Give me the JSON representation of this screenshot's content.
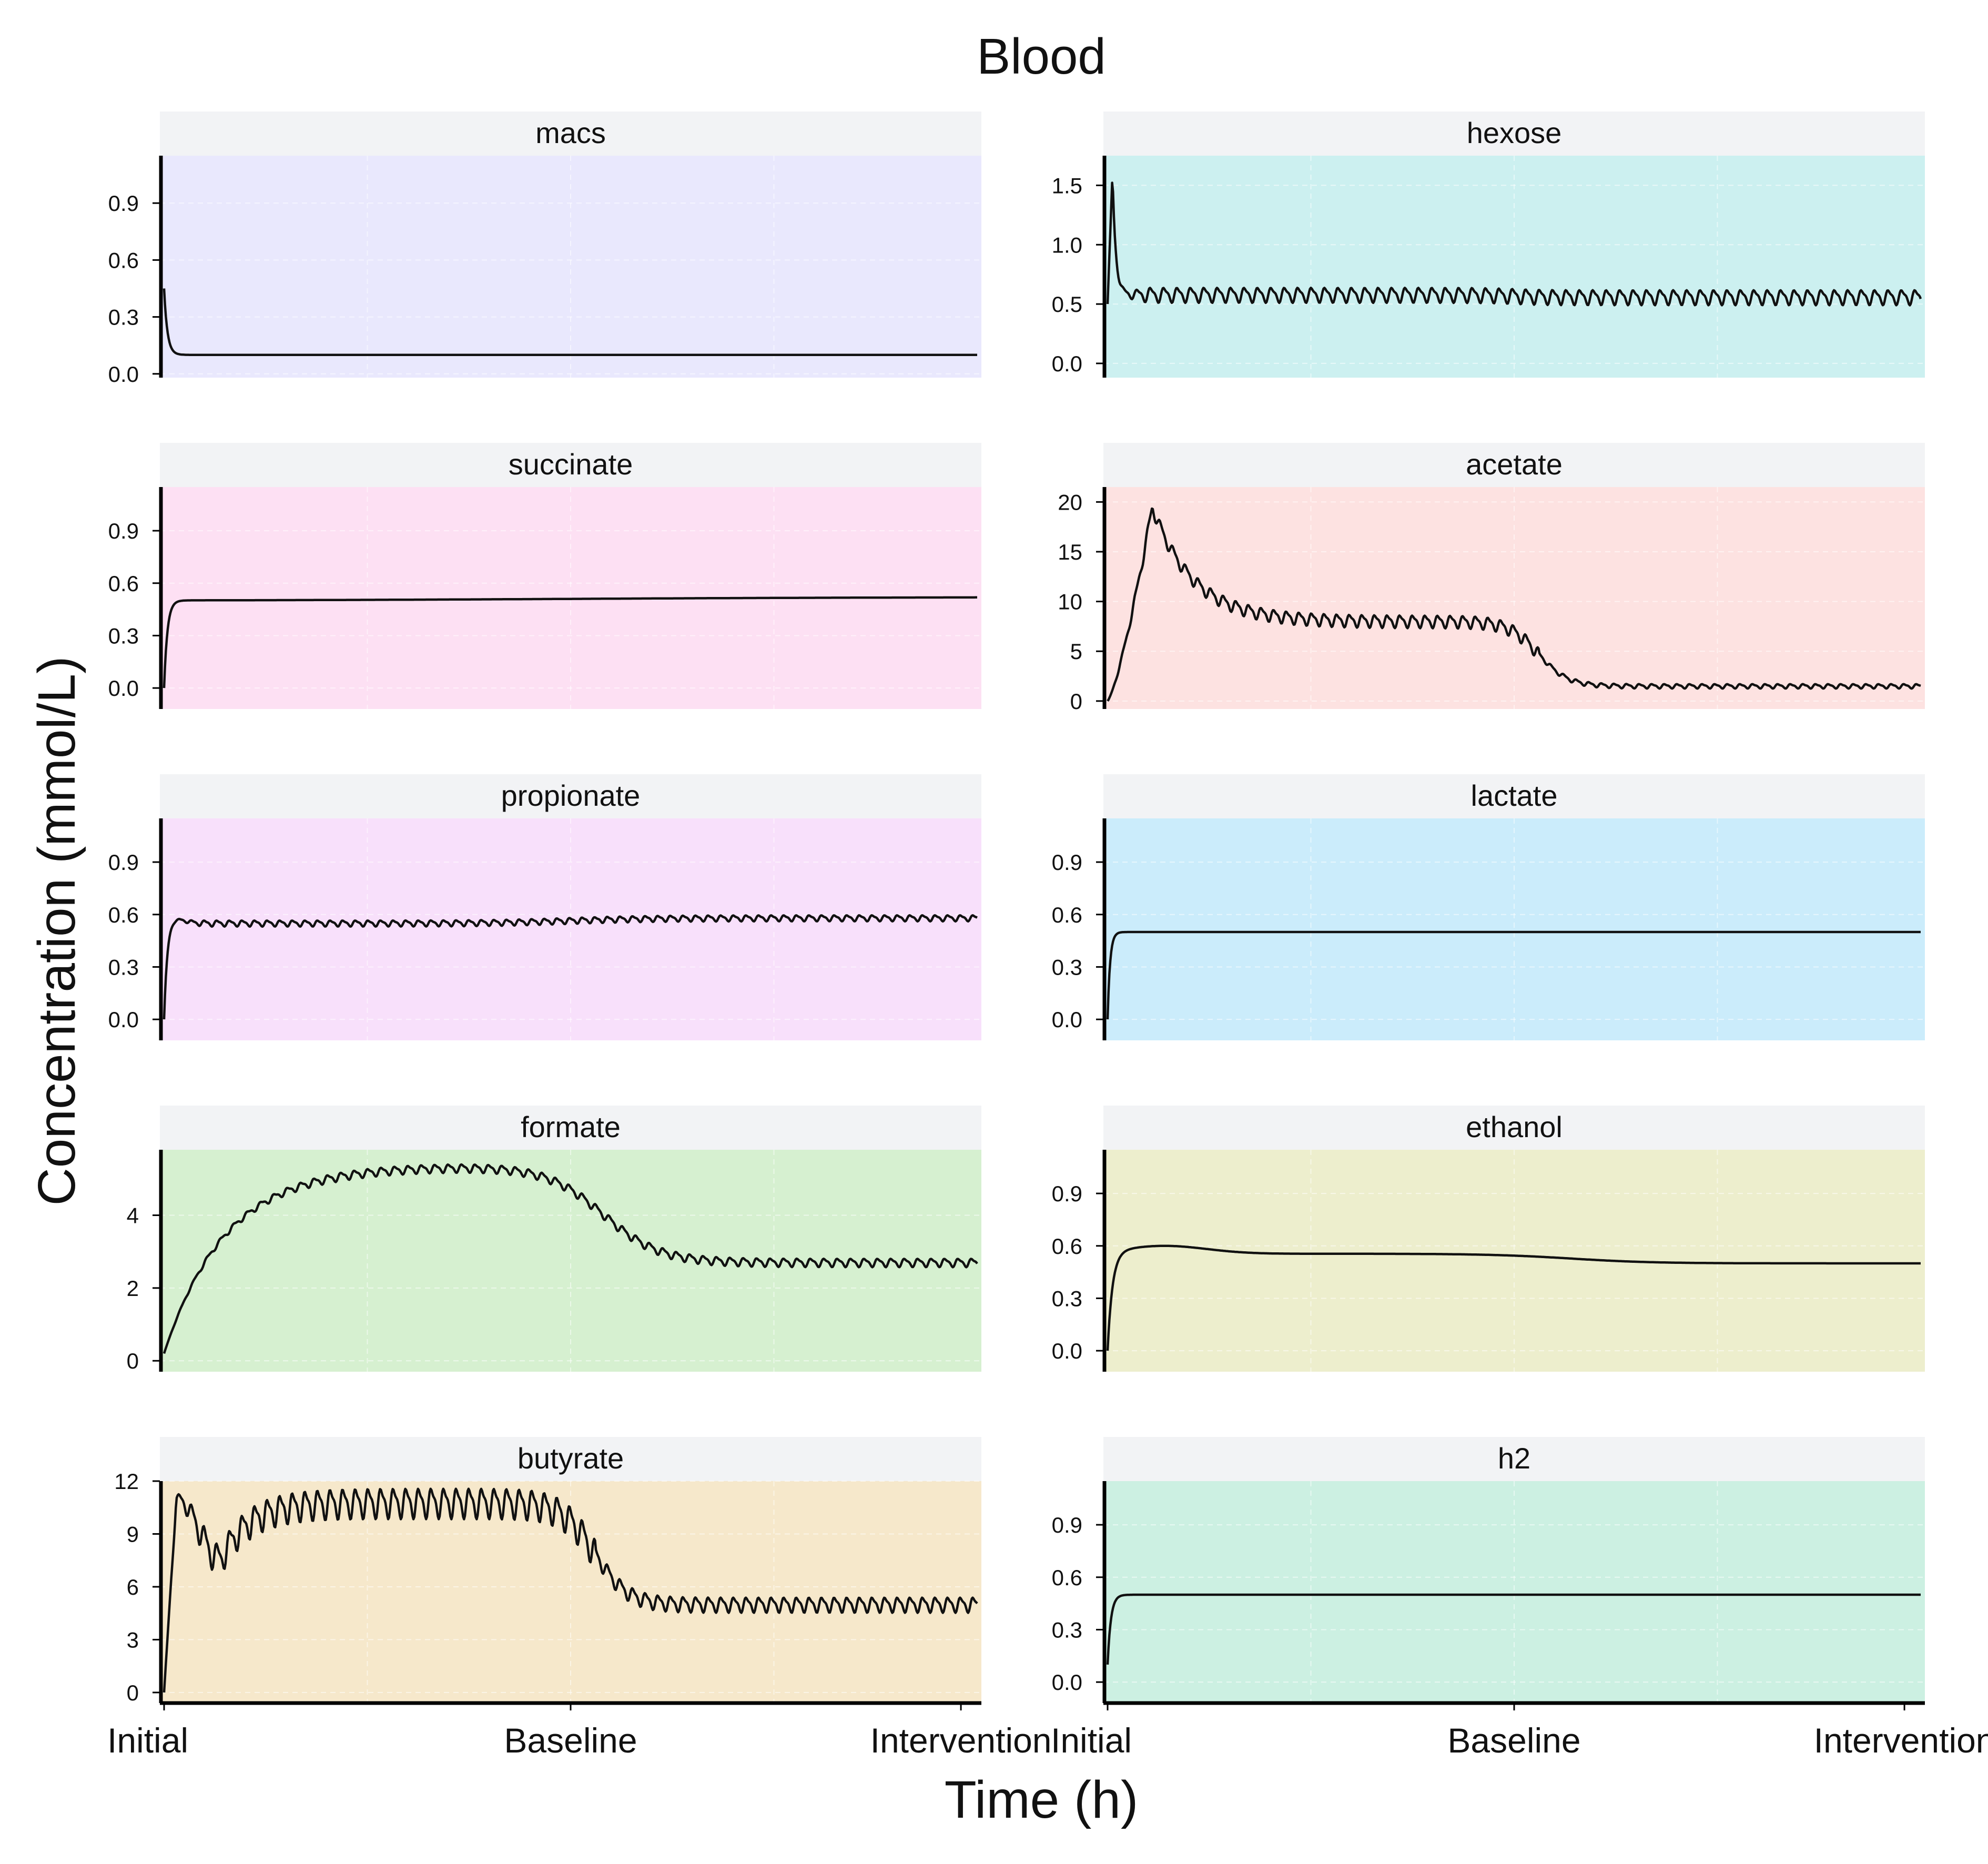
{
  "figure": {
    "title": "Blood",
    "xlabel": "Time (h)",
    "ylabel": "Concentration (mmol/L)",
    "x_tick_labels": [
      "Initial",
      "Baseline",
      "Intervention"
    ],
    "strip_color": "#f2f3f5",
    "line_color": "#111111"
  },
  "chart_data": [
    {
      "type": "line",
      "title": "macs",
      "bg": "#e9e8fd",
      "ylim": [
        -0.02,
        1.15
      ],
      "yticks": [
        0.0,
        0.3,
        0.6,
        0.9
      ],
      "tick_decimals": 1,
      "curve": {
        "kind": "decay",
        "start": 0.45,
        "end": 0.1,
        "tau": 0.004,
        "osc_amp": 0.0,
        "osc_period": 0.05
      }
    },
    {
      "type": "line",
      "title": "hexose",
      "bg": "#ccf0f0",
      "ylim": [
        -0.12,
        1.75
      ],
      "yticks": [
        0.0,
        0.5,
        1.0,
        1.5
      ],
      "tick_decimals": 1,
      "curve": {
        "kind": "peak",
        "start": 0.5,
        "peak": 1.6,
        "peak_at": 0.006,
        "tau": 0.004,
        "level1": 0.58,
        "level2": 0.56,
        "step_at": 0.5,
        "step_width": 0.02,
        "osc_amp": 0.055,
        "osc_period": 0.0165
      }
    },
    {
      "type": "line",
      "title": "succinate",
      "bg": "#fde0f3",
      "ylim": [
        -0.12,
        1.15
      ],
      "yticks": [
        0.0,
        0.3,
        0.6,
        0.9
      ],
      "tick_decimals": 1,
      "curve": {
        "kind": "rise",
        "start": 0.0,
        "tau": 0.004,
        "level1": 0.5,
        "level2": 0.52,
        "step_at": 0.5,
        "step_width": 0.2,
        "osc_amp": 0.0,
        "osc_period": 0.05
      }
    },
    {
      "type": "line",
      "title": "acetate",
      "bg": "#fde2e1",
      "ylim": [
        -0.8,
        21.5
      ],
      "yticks": [
        0,
        5,
        10,
        15,
        20
      ],
      "tick_decimals": 0,
      "curve": {
        "kind": "bigpeak",
        "start": 0.0,
        "peak": 19.5,
        "peak_at": 0.055,
        "rise_tau": 0.03,
        "decay_tau": 0.05,
        "level1": 8.0,
        "level2": 1.5,
        "step_at": 0.53,
        "step_width": 0.018,
        "osc_amp": 0.55,
        "osc_period": 0.0155
      }
    },
    {
      "type": "line",
      "title": "propionate",
      "bg": "#f8e0fb",
      "ylim": [
        -0.12,
        1.15
      ],
      "yticks": [
        0.0,
        0.3,
        0.6,
        0.9
      ],
      "tick_decimals": 1,
      "curve": {
        "kind": "overshoot",
        "start": 0.0,
        "peak": 0.58,
        "peak_at": 0.01,
        "tau": 0.004,
        "level1": 0.55,
        "level2": 0.58,
        "step_at": 0.5,
        "step_width": 0.05,
        "osc_amp": 0.015,
        "osc_period": 0.0155
      }
    },
    {
      "type": "line",
      "title": "lactate",
      "bg": "#cbecfb",
      "ylim": [
        -0.12,
        1.15
      ],
      "yticks": [
        0.0,
        0.3,
        0.6,
        0.9
      ],
      "tick_decimals": 1,
      "curve": {
        "kind": "rise",
        "start": 0.0,
        "tau": 0.003,
        "level1": 0.5,
        "level2": 0.5,
        "step_at": 0.5,
        "step_width": 0.1,
        "osc_amp": 0.0,
        "osc_period": 0.05
      }
    },
    {
      "type": "line",
      "title": "formate",
      "bg": "#d6f0d0",
      "ylim": [
        -0.3,
        5.8
      ],
      "yticks": [
        0,
        2,
        4
      ],
      "tick_decimals": 0,
      "curve": {
        "kind": "slowrise",
        "start": 0.2,
        "tau": 0.075,
        "level1": 5.35,
        "level2": 2.7,
        "step_at": 0.54,
        "step_width": 0.035,
        "osc_amp": 0.1,
        "osc_period": 0.0165
      }
    },
    {
      "type": "line",
      "title": "ethanol",
      "bg": "#edeecd",
      "ylim": [
        -0.12,
        1.15
      ],
      "yticks": [
        0.0,
        0.3,
        0.6,
        0.9
      ],
      "tick_decimals": 1,
      "curve": {
        "kind": "overshoot",
        "start": 0.0,
        "peak": 0.6,
        "peak_at": 0.07,
        "tau": 0.006,
        "level1": 0.555,
        "level2": 0.5,
        "step_at": 0.57,
        "step_width": 0.05,
        "osc_amp": 0.0,
        "osc_period": 0.05
      }
    },
    {
      "type": "line",
      "title": "butyrate",
      "bg": "#f6e8cb",
      "ylim": [
        -0.6,
        12.0
      ],
      "yticks": [
        0,
        3,
        6,
        9,
        12
      ],
      "tick_decimals": 0,
      "curve": {
        "kind": "butyrate",
        "start": 0.0,
        "peak": 11.0,
        "peak_at": 0.015,
        "dip": 7.6,
        "dip_at": 0.07,
        "level1": 10.8,
        "level2": 5.0,
        "step_at": 0.53,
        "step_width": 0.02,
        "osc_amp": 0.75,
        "osc_period": 0.0155
      }
    },
    {
      "type": "line",
      "title": "h2",
      "bg": "#ccf0e2",
      "ylim": [
        -0.12,
        1.15
      ],
      "yticks": [
        0.0,
        0.3,
        0.6,
        0.9
      ],
      "tick_decimals": 1,
      "curve": {
        "kind": "rise",
        "start": 0.1,
        "tau": 0.004,
        "level1": 0.5,
        "level2": 0.5,
        "step_at": 0.5,
        "step_width": 0.1,
        "osc_amp": 0.0,
        "osc_period": 0.05
      }
    }
  ]
}
